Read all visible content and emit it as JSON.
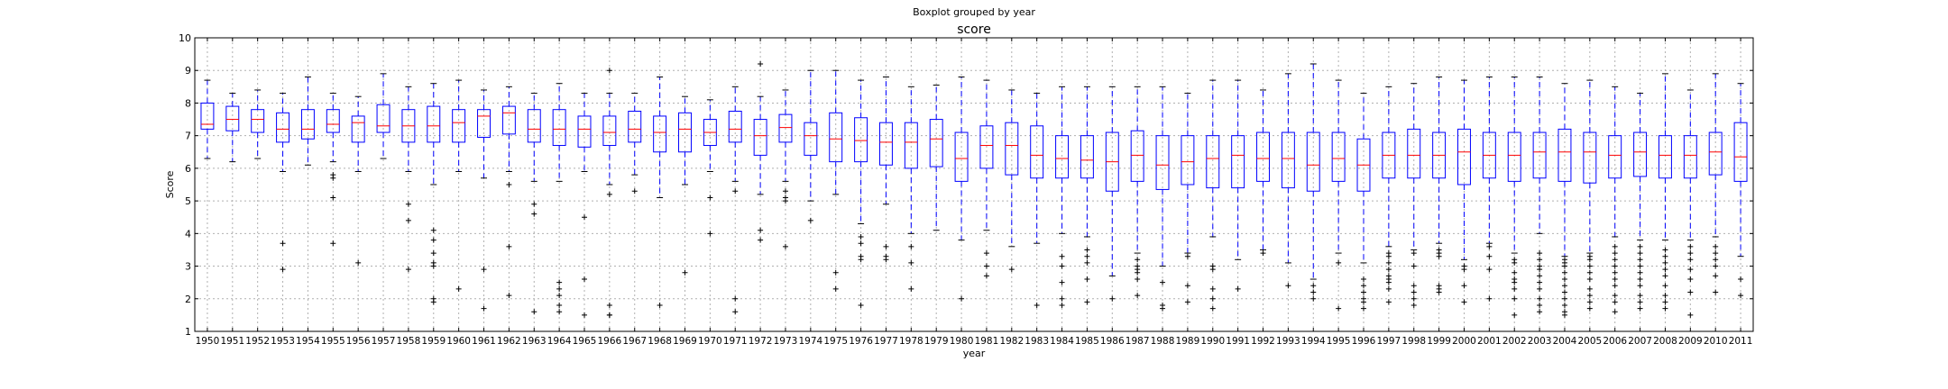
{
  "suptitle": "Boxplot grouped by year",
  "chart_data": {
    "type": "boxplot",
    "title": "score",
    "xlabel": "year",
    "ylabel": "Score",
    "ylim": [
      1,
      10
    ],
    "yticks": [
      1,
      2,
      3,
      4,
      5,
      6,
      7,
      8,
      9,
      10
    ],
    "grid": true,
    "box_color": "#0000ff",
    "median_color": "#ff0000",
    "whisker_color": "#0000ff",
    "flier_color": "#000000",
    "categories": [
      "1950",
      "1951",
      "1952",
      "1953",
      "1954",
      "1955",
      "1956",
      "1957",
      "1958",
      "1959",
      "1960",
      "1961",
      "1962",
      "1963",
      "1964",
      "1965",
      "1966",
      "1967",
      "1968",
      "1969",
      "1970",
      "1971",
      "1972",
      "1973",
      "1974",
      "1975",
      "1976",
      "1977",
      "1978",
      "1979",
      "1980",
      "1981",
      "1982",
      "1983",
      "1984",
      "1985",
      "1986",
      "1987",
      "1988",
      "1989",
      "1990",
      "1991",
      "1992",
      "1993",
      "1994",
      "1995",
      "1996",
      "1997",
      "1998",
      "1999",
      "2000",
      "2001",
      "2002",
      "2003",
      "2004",
      "2005",
      "2006",
      "2007",
      "2008",
      "2009",
      "2010",
      "2011"
    ],
    "boxes": [
      {
        "whislo": 6.3,
        "q1": 7.2,
        "med": 7.35,
        "q3": 8.0,
        "whishi": 8.7,
        "fliers": []
      },
      {
        "whislo": 6.2,
        "q1": 7.15,
        "med": 7.5,
        "q3": 7.9,
        "whishi": 8.3,
        "fliers": []
      },
      {
        "whislo": 6.3,
        "q1": 7.1,
        "med": 7.5,
        "q3": 7.8,
        "whishi": 8.4,
        "fliers": []
      },
      {
        "whislo": 5.9,
        "q1": 6.8,
        "med": 7.2,
        "q3": 7.7,
        "whishi": 8.3,
        "fliers": [
          3.7,
          2.9
        ]
      },
      {
        "whislo": 6.1,
        "q1": 6.9,
        "med": 7.2,
        "q3": 7.8,
        "whishi": 8.8,
        "fliers": []
      },
      {
        "whislo": 6.2,
        "q1": 7.1,
        "med": 7.35,
        "q3": 7.8,
        "whishi": 8.3,
        "fliers": [
          5.8,
          5.7,
          5.1,
          3.7
        ]
      },
      {
        "whislo": 5.9,
        "q1": 6.8,
        "med": 7.4,
        "q3": 7.6,
        "whishi": 8.2,
        "fliers": [
          3.1
        ]
      },
      {
        "whislo": 6.3,
        "q1": 7.1,
        "med": 7.3,
        "q3": 7.95,
        "whishi": 8.9,
        "fliers": []
      },
      {
        "whislo": 5.9,
        "q1": 6.8,
        "med": 7.3,
        "q3": 7.8,
        "whishi": 8.5,
        "fliers": [
          4.9,
          4.4,
          2.9
        ]
      },
      {
        "whislo": 5.5,
        "q1": 6.8,
        "med": 7.3,
        "q3": 7.9,
        "whishi": 8.6,
        "fliers": [
          4.1,
          3.8,
          3.4,
          3.1,
          3.0,
          2.0,
          1.9
        ]
      },
      {
        "whislo": 5.9,
        "q1": 6.8,
        "med": 7.4,
        "q3": 7.8,
        "whishi": 8.7,
        "fliers": [
          2.3
        ]
      },
      {
        "whislo": 5.7,
        "q1": 6.95,
        "med": 7.6,
        "q3": 7.8,
        "whishi": 8.4,
        "fliers": [
          2.9,
          1.7
        ]
      },
      {
        "whislo": 5.9,
        "q1": 7.05,
        "med": 7.7,
        "q3": 7.9,
        "whishi": 8.5,
        "fliers": [
          5.5,
          3.6,
          2.1
        ]
      },
      {
        "whislo": 5.6,
        "q1": 6.8,
        "med": 7.2,
        "q3": 7.8,
        "whishi": 8.3,
        "fliers": [
          4.9,
          4.6,
          1.6
        ]
      },
      {
        "whislo": 5.6,
        "q1": 6.7,
        "med": 7.2,
        "q3": 7.8,
        "whishi": 8.6,
        "fliers": [
          2.5,
          2.3,
          2.1,
          1.8,
          1.6
        ]
      },
      {
        "whislo": 5.9,
        "q1": 6.65,
        "med": 7.2,
        "q3": 7.6,
        "whishi": 8.3,
        "fliers": [
          4.5,
          2.6,
          1.5
        ]
      },
      {
        "whislo": 5.5,
        "q1": 6.7,
        "med": 7.1,
        "q3": 7.6,
        "whishi": 8.3,
        "fliers": [
          9.0,
          5.2,
          1.8,
          1.5,
          1.5
        ]
      },
      {
        "whislo": 5.8,
        "q1": 6.8,
        "med": 7.2,
        "q3": 7.75,
        "whishi": 8.3,
        "fliers": [
          5.3
        ]
      },
      {
        "whislo": 5.1,
        "q1": 6.5,
        "med": 7.1,
        "q3": 7.6,
        "whishi": 8.8,
        "fliers": [
          1.8
        ]
      },
      {
        "whislo": 5.5,
        "q1": 6.5,
        "med": 7.2,
        "q3": 7.7,
        "whishi": 8.2,
        "fliers": [
          2.8
        ]
      },
      {
        "whislo": 5.9,
        "q1": 6.7,
        "med": 7.1,
        "q3": 7.5,
        "whishi": 8.1,
        "fliers": [
          5.1,
          4.0
        ]
      },
      {
        "whislo": 5.6,
        "q1": 6.8,
        "med": 7.2,
        "q3": 7.75,
        "whishi": 8.5,
        "fliers": [
          5.3,
          2.0,
          1.6
        ]
      },
      {
        "whislo": 5.2,
        "q1": 6.4,
        "med": 7.0,
        "q3": 7.5,
        "whishi": 8.2,
        "fliers": [
          9.2,
          4.1,
          3.8
        ]
      },
      {
        "whislo": 5.6,
        "q1": 6.8,
        "med": 7.25,
        "q3": 7.65,
        "whishi": 8.4,
        "fliers": [
          5.3,
          5.1,
          5.0,
          3.6
        ]
      },
      {
        "whislo": 5.0,
        "q1": 6.4,
        "med": 7.0,
        "q3": 7.4,
        "whishi": 9.0,
        "fliers": [
          4.4
        ]
      },
      {
        "whislo": 5.2,
        "q1": 6.2,
        "med": 6.9,
        "q3": 7.7,
        "whishi": 9.0,
        "fliers": [
          2.8,
          2.3
        ]
      },
      {
        "whislo": 4.3,
        "q1": 6.2,
        "med": 6.85,
        "q3": 7.55,
        "whishi": 8.7,
        "fliers": [
          3.9,
          3.7,
          3.3,
          3.2,
          1.8
        ]
      },
      {
        "whislo": 4.9,
        "q1": 6.1,
        "med": 6.8,
        "q3": 7.4,
        "whishi": 8.8,
        "fliers": [
          3.6,
          3.3,
          3.2
        ]
      },
      {
        "whislo": 4.0,
        "q1": 6.0,
        "med": 6.8,
        "q3": 7.4,
        "whishi": 8.5,
        "fliers": [
          3.6,
          3.1,
          2.3
        ]
      },
      {
        "whislo": 4.1,
        "q1": 6.05,
        "med": 6.9,
        "q3": 7.5,
        "whishi": 8.55,
        "fliers": []
      },
      {
        "whislo": 3.8,
        "q1": 5.6,
        "med": 6.3,
        "q3": 7.1,
        "whishi": 8.8,
        "fliers": [
          2.0
        ]
      },
      {
        "whislo": 4.1,
        "q1": 6.0,
        "med": 6.7,
        "q3": 7.3,
        "whishi": 8.7,
        "fliers": [
          3.4,
          3.0,
          2.7
        ]
      },
      {
        "whislo": 3.6,
        "q1": 5.8,
        "med": 6.7,
        "q3": 7.4,
        "whishi": 8.4,
        "fliers": [
          2.9
        ]
      },
      {
        "whislo": 3.7,
        "q1": 5.7,
        "med": 6.4,
        "q3": 7.3,
        "whishi": 8.3,
        "fliers": [
          1.8
        ]
      },
      {
        "whislo": 4.0,
        "q1": 5.7,
        "med": 6.3,
        "q3": 7.0,
        "whishi": 8.5,
        "fliers": [
          3.3,
          3.0,
          2.5,
          2.0,
          1.8
        ]
      },
      {
        "whislo": 3.9,
        "q1": 5.7,
        "med": 6.25,
        "q3": 7.0,
        "whishi": 8.5,
        "fliers": [
          3.5,
          3.3,
          3.1,
          2.6,
          1.9
        ]
      },
      {
        "whislo": 2.7,
        "q1": 5.3,
        "med": 6.2,
        "q3": 7.1,
        "whishi": 8.5,
        "fliers": [
          2.0
        ]
      },
      {
        "whislo": 3.4,
        "q1": 5.6,
        "med": 6.4,
        "q3": 7.15,
        "whishi": 8.5,
        "fliers": [
          3.2,
          3.0,
          2.9,
          2.8,
          2.6,
          2.1
        ]
      },
      {
        "whislo": 3.0,
        "q1": 5.35,
        "med": 6.1,
        "q3": 7.0,
        "whishi": 8.5,
        "fliers": [
          2.5,
          1.8,
          1.7
        ]
      },
      {
        "whislo": 3.4,
        "q1": 5.5,
        "med": 6.2,
        "q3": 7.0,
        "whishi": 8.3,
        "fliers": [
          3.3,
          2.4,
          1.9
        ]
      },
      {
        "whislo": 3.9,
        "q1": 5.4,
        "med": 6.3,
        "q3": 7.0,
        "whishi": 8.7,
        "fliers": [
          3.0,
          2.9,
          2.3,
          2.0,
          1.7
        ]
      },
      {
        "whislo": 3.2,
        "q1": 5.4,
        "med": 6.4,
        "q3": 7.0,
        "whishi": 8.7,
        "fliers": [
          2.3
        ]
      },
      {
        "whislo": 3.5,
        "q1": 5.6,
        "med": 6.3,
        "q3": 7.1,
        "whishi": 8.4,
        "fliers": [
          3.4
        ]
      },
      {
        "whislo": 3.1,
        "q1": 5.4,
        "med": 6.3,
        "q3": 7.1,
        "whishi": 8.9,
        "fliers": [
          2.4
        ]
      },
      {
        "whislo": 2.6,
        "q1": 5.3,
        "med": 6.1,
        "q3": 7.1,
        "whishi": 9.2,
        "fliers": [
          2.4,
          2.2,
          2.0
        ]
      },
      {
        "whislo": 3.4,
        "q1": 5.6,
        "med": 6.3,
        "q3": 7.1,
        "whishi": 8.7,
        "fliers": [
          3.1,
          1.7
        ]
      },
      {
        "whislo": 3.1,
        "q1": 5.3,
        "med": 6.1,
        "q3": 6.9,
        "whishi": 8.3,
        "fliers": [
          2.6,
          2.4,
          2.2,
          2.0,
          1.9,
          1.7
        ]
      },
      {
        "whislo": 3.6,
        "q1": 5.7,
        "med": 6.4,
        "q3": 7.1,
        "whishi": 8.5,
        "fliers": [
          3.4,
          3.3,
          3.1,
          2.9,
          2.7,
          2.6,
          2.5,
          2.3,
          1.9
        ]
      },
      {
        "whislo": 3.5,
        "q1": 5.7,
        "med": 6.4,
        "q3": 7.2,
        "whishi": 8.6,
        "fliers": [
          3.4,
          3.0,
          2.4,
          2.2,
          2.0,
          1.8
        ]
      },
      {
        "whislo": 3.7,
        "q1": 5.7,
        "med": 6.4,
        "q3": 7.1,
        "whishi": 8.8,
        "fliers": [
          3.5,
          3.4,
          3.3,
          2.4,
          2.3,
          2.2
        ]
      },
      {
        "whislo": 3.2,
        "q1": 5.5,
        "med": 6.5,
        "q3": 7.2,
        "whishi": 8.7,
        "fliers": [
          3.0,
          2.9,
          2.4,
          1.9
        ]
      },
      {
        "whislo": 3.7,
        "q1": 5.7,
        "med": 6.4,
        "q3": 7.1,
        "whishi": 8.8,
        "fliers": [
          3.6,
          3.3,
          2.9,
          2.0
        ]
      },
      {
        "whislo": 3.4,
        "q1": 5.6,
        "med": 6.4,
        "q3": 7.1,
        "whishi": 8.8,
        "fliers": [
          3.2,
          3.1,
          2.8,
          2.6,
          2.5,
          2.3,
          2.0,
          1.5
        ]
      },
      {
        "whislo": 4.0,
        "q1": 5.7,
        "med": 6.5,
        "q3": 7.1,
        "whishi": 8.8,
        "fliers": [
          3.4,
          3.2,
          3.0,
          2.9,
          2.7,
          2.5,
          2.3,
          2.0,
          1.8,
          1.6
        ]
      },
      {
        "whislo": 3.3,
        "q1": 5.6,
        "med": 6.5,
        "q3": 7.2,
        "whishi": 8.6,
        "fliers": [
          3.2,
          3.1,
          3.0,
          2.8,
          2.6,
          2.4,
          2.2,
          2.0,
          1.8,
          1.6,
          1.5
        ]
      },
      {
        "whislo": 3.4,
        "q1": 5.55,
        "med": 6.5,
        "q3": 7.1,
        "whishi": 8.7,
        "fliers": [
          3.3,
          3.2,
          3.0,
          2.8,
          2.6,
          2.3,
          2.1,
          1.9,
          1.7
        ]
      },
      {
        "whislo": 3.9,
        "q1": 5.7,
        "med": 6.4,
        "q3": 7.0,
        "whishi": 8.5,
        "fliers": [
          3.6,
          3.4,
          3.2,
          3.0,
          2.8,
          2.6,
          2.4,
          2.1,
          1.9,
          1.6
        ]
      },
      {
        "whislo": 3.8,
        "q1": 5.75,
        "med": 6.5,
        "q3": 7.1,
        "whishi": 8.3,
        "fliers": [
          3.6,
          3.4,
          3.2,
          3.0,
          2.8,
          2.6,
          2.4,
          2.1,
          1.9,
          1.7
        ]
      },
      {
        "whislo": 3.8,
        "q1": 5.7,
        "med": 6.4,
        "q3": 7.0,
        "whishi": 8.9,
        "fliers": [
          3.5,
          3.3,
          3.1,
          2.9,
          2.7,
          2.4,
          2.1,
          1.9,
          1.7
        ]
      },
      {
        "whislo": 3.8,
        "q1": 5.7,
        "med": 6.4,
        "q3": 7.0,
        "whishi": 8.4,
        "fliers": [
          3.6,
          3.4,
          3.2,
          2.9,
          2.6,
          2.2,
          1.5
        ]
      },
      {
        "whislo": 3.9,
        "q1": 5.8,
        "med": 6.5,
        "q3": 7.1,
        "whishi": 8.9,
        "fliers": [
          3.6,
          3.4,
          3.2,
          3.0,
          2.7,
          2.2
        ]
      },
      {
        "whislo": 3.3,
        "q1": 5.6,
        "med": 6.35,
        "q3": 7.4,
        "whishi": 8.6,
        "fliers": [
          2.6,
          2.1
        ]
      }
    ]
  }
}
